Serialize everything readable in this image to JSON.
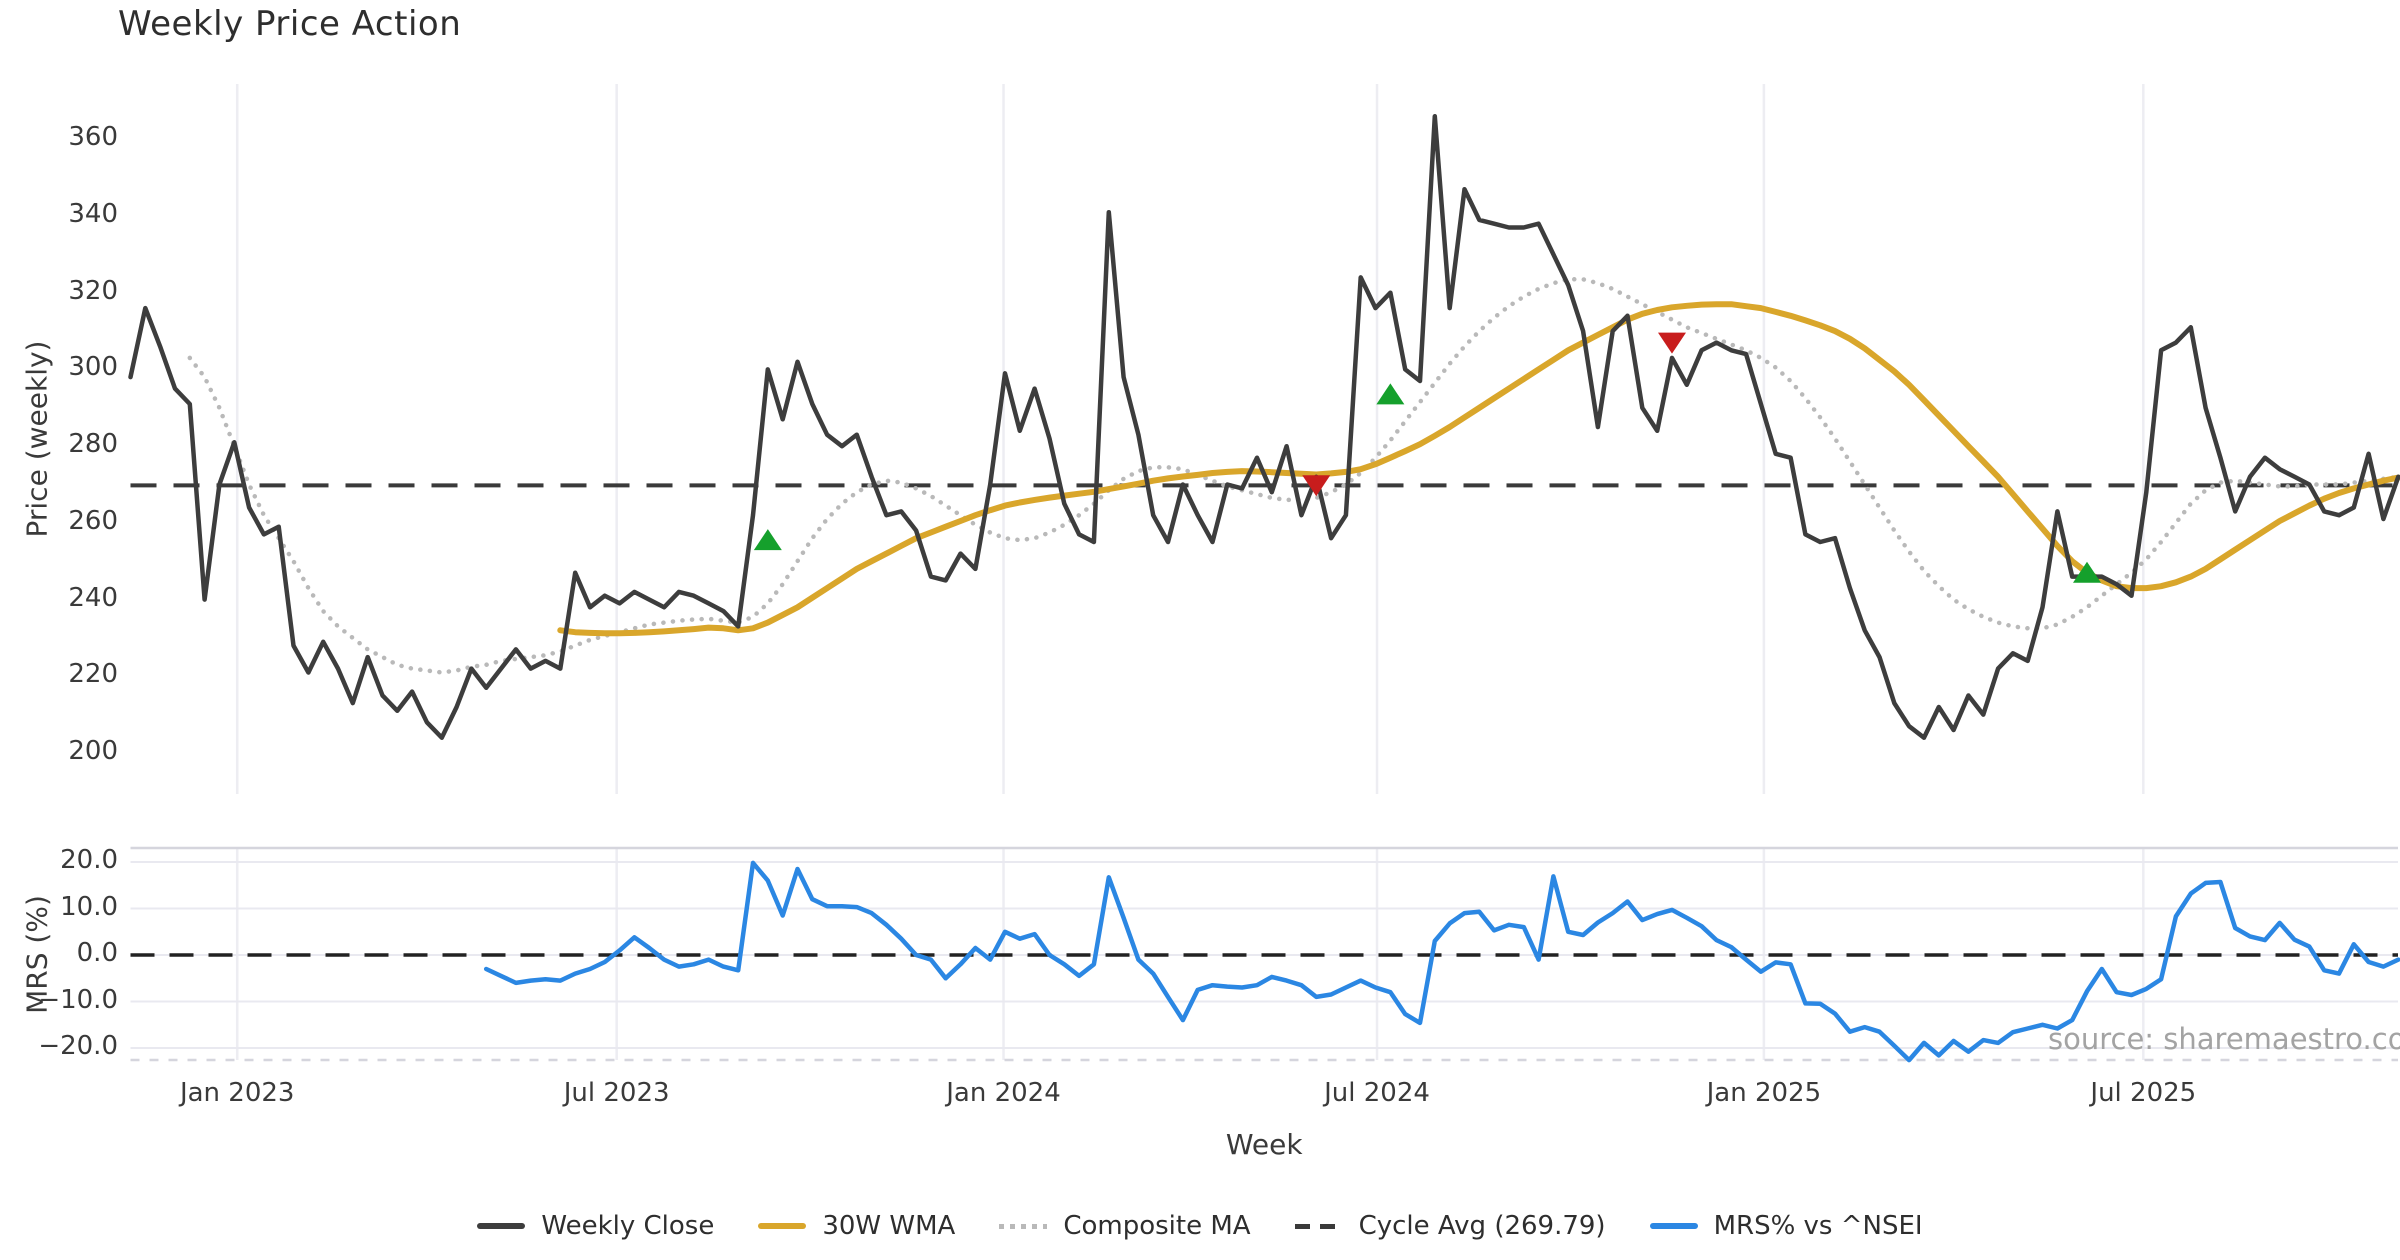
{
  "title": "Weekly Price Action",
  "xlabel": "Week",
  "source_note": "source: sharemaestro.com",
  "price_panel": {
    "ylabel": "Price (weekly)",
    "yticks": [
      "200",
      "220",
      "240",
      "260",
      "280",
      "300",
      "320",
      "340",
      "360"
    ]
  },
  "mrs_panel": {
    "ylabel": "MRS (%)",
    "yticks": [
      "20.0",
      "10.0",
      "0.0",
      "−10.0",
      "−20.0"
    ]
  },
  "x_ticks": [
    {
      "label": "Jan 2023",
      "week": 7.2
    },
    {
      "label": "Jul 2023",
      "week": 32.8
    },
    {
      "label": "Jan 2024",
      "week": 58.9
    },
    {
      "label": "Jul 2024",
      "week": 84.1
    },
    {
      "label": "Jan 2025",
      "week": 110.2
    },
    {
      "label": "Jul 2025",
      "week": 135.8
    }
  ],
  "legend": [
    {
      "label": "Weekly Close",
      "swatch": "solid",
      "color": "#3d3d3d"
    },
    {
      "label": "30W WMA",
      "swatch": "solid",
      "color": "#d9a62b"
    },
    {
      "label": "Composite MA",
      "swatch": "dotted",
      "color": "#b9b9b9"
    },
    {
      "label": "Cycle Avg (269.79)",
      "swatch": "dashed",
      "color": "#3a3a3a"
    },
    {
      "label": "MRS% vs ^NSEI",
      "swatch": "solid",
      "color": "#2b87e3"
    }
  ],
  "colors": {
    "weekly_close": "#3d3d3d",
    "wma": "#d9a62b",
    "composite": "#b9b9b9",
    "cycle_avg_line": "#3a3a3a",
    "mrs": "#2b87e3",
    "buy_marker": "#15a02c",
    "sell_marker": "#c81d1d",
    "gridline": "#ededf2",
    "panel_spine": "#d5d5dd",
    "zero_dash": "#222222"
  },
  "chart_data": {
    "type": "line",
    "x_unit": "week_index",
    "weeks_total": 154,
    "price_ylim": [
      189.6,
      373.5
    ],
    "mrs_ylim": [
      -22.6,
      23.0
    ],
    "cycle_avg": 269.79,
    "mrs_zero": 0.0,
    "grid": "vertical-on-price-panel, horizontal-on-mrs-panel",
    "legend_position": "bottom-center",
    "series": [
      {
        "name": "Weekly Close",
        "panel": "price",
        "start_week": 0,
        "values": [
          298,
          316,
          306,
          295,
          291,
          240,
          270,
          281,
          264,
          257,
          259,
          228,
          221,
          229,
          222,
          213,
          225,
          215,
          211,
          216,
          208,
          204,
          212,
          222,
          217,
          222,
          227,
          222,
          224,
          222,
          247,
          238,
          241,
          239,
          242,
          240,
          238,
          242,
          241,
          239,
          237,
          233,
          262,
          300,
          287,
          302,
          291,
          283,
          280,
          283,
          272,
          262,
          263,
          258,
          246,
          245,
          252,
          248,
          270,
          299,
          284,
          295,
          282,
          265,
          257,
          255,
          341,
          298,
          283,
          262,
          255,
          270,
          262,
          255,
          270,
          269,
          277,
          268,
          280,
          262,
          272,
          256,
          262,
          324,
          316,
          320,
          300,
          297,
          366,
          316,
          347,
          339,
          338,
          337,
          337,
          338,
          330,
          322,
          310,
          285,
          310,
          314,
          290,
          284,
          303,
          296,
          305,
          307,
          305,
          304,
          291,
          278,
          277,
          257,
          255,
          256,
          243,
          232,
          225,
          213,
          207,
          204,
          212,
          206,
          215,
          210,
          222,
          226,
          224,
          238,
          263,
          246,
          246,
          246,
          244,
          241,
          268,
          305,
          307,
          311,
          290,
          277,
          263,
          272,
          277,
          274,
          272,
          270,
          263,
          262,
          264,
          278,
          261,
          272
        ]
      },
      {
        "name": "30W WMA",
        "panel": "price",
        "start_week": 29,
        "values": [
          232,
          231.5,
          231.3,
          231.2,
          231.2,
          231.3,
          231.5,
          231.7,
          232,
          232.3,
          232.7,
          232.5,
          232,
          232.5,
          234,
          236,
          238,
          240.5,
          243,
          245.5,
          248,
          250,
          252,
          254,
          256,
          257.5,
          259,
          260.5,
          262,
          263.3,
          264.5,
          265.3,
          266,
          266.6,
          267.1,
          267.6,
          268.1,
          268.8,
          269.5,
          270.2,
          271,
          271.6,
          272.1,
          272.5,
          273,
          273.3,
          273.5,
          273.4,
          273.2,
          273,
          272.8,
          272.6,
          272.9,
          273.3,
          274,
          275.3,
          277,
          278.7,
          280.5,
          282.7,
          285,
          287.5,
          290,
          292.5,
          295,
          297.5,
          300,
          302.5,
          305,
          307,
          309,
          311,
          313,
          314.5,
          315.5,
          316.2,
          316.6,
          316.9,
          317,
          317,
          316.5,
          316,
          315,
          314,
          312.8,
          311.5,
          310,
          308,
          305.5,
          302.5,
          299.5,
          296,
          292,
          288,
          284,
          280,
          276,
          272,
          267.5,
          263,
          258.5,
          254,
          250,
          247,
          245,
          243.5,
          243,
          243,
          243.5,
          244.5,
          246,
          248,
          250.5,
          253,
          255.5,
          258,
          260.5,
          262.5,
          264.5,
          266.3,
          267.8,
          269,
          270,
          271,
          271.8
        ]
      },
      {
        "name": "Composite MA",
        "panel": "price",
        "start_week": 4,
        "values": [
          303,
          298,
          290,
          280,
          270,
          262,
          256,
          250,
          243,
          237,
          233,
          230,
          227,
          225,
          223,
          222,
          221.5,
          221,
          221.5,
          222.5,
          223,
          224,
          224.5,
          225,
          225.5,
          226.5,
          228,
          229.5,
          230.5,
          231.5,
          232.5,
          233.5,
          234,
          234.5,
          234.8,
          235,
          234.5,
          234,
          235.5,
          239,
          244,
          250,
          256,
          261,
          265,
          268,
          270,
          271,
          270.5,
          269,
          267,
          264.5,
          262,
          259.5,
          257.5,
          256,
          255.5,
          256,
          257.5,
          259.5,
          262,
          265,
          268.5,
          271.5,
          273.5,
          274.5,
          274.5,
          274,
          272.5,
          271,
          269.5,
          268.5,
          267.5,
          266.5,
          266,
          266,
          266.5,
          268,
          270,
          273,
          277,
          281.5,
          286.5,
          291.5,
          296.5,
          301.5,
          306,
          310,
          313.5,
          316.5,
          319,
          321,
          322.5,
          323.5,
          323.5,
          322.5,
          321,
          319,
          317,
          315,
          313,
          311,
          309.5,
          308,
          306.5,
          305,
          303,
          300.5,
          297,
          292.5,
          287.5,
          282,
          276,
          270,
          264,
          258,
          252.5,
          247.5,
          243.5,
          240,
          237.5,
          235.5,
          234,
          233,
          232.5,
          232.5,
          233.5,
          235.5,
          238,
          241,
          244,
          247,
          250.5,
          255,
          260,
          265,
          268.5,
          270.5,
          271,
          270.5,
          270,
          269.5,
          269.5,
          270,
          270,
          270,
          270.5,
          271,
          271.5,
          272
        ]
      },
      {
        "name": "MRS% vs ^NSEI",
        "panel": "mrs",
        "start_week": 24,
        "values": [
          -3,
          -4.5,
          -6,
          -5.5,
          -5.2,
          -5.5,
          -4,
          -3,
          -1.5,
          1,
          3.8,
          1.5,
          -1,
          -2.5,
          -2,
          -1,
          -2.5,
          -3.3,
          19.8,
          16,
          8.5,
          18.5,
          12,
          10.5,
          10.5,
          10.3,
          9,
          6.5,
          3.5,
          0,
          -1,
          -5,
          -2,
          1.5,
          -1,
          5,
          3.5,
          4.5,
          0,
          -2,
          -4.5,
          -2,
          16.7,
          8,
          -1,
          -4,
          -9,
          -14,
          -7.5,
          -6.5,
          -6.8,
          -7,
          -6.5,
          -4.7,
          -5.5,
          -6.5,
          -9,
          -8.5,
          -7,
          -5.5,
          -7,
          -8,
          -12.7,
          -14.6,
          3,
          6.8,
          9,
          9.3,
          5.3,
          6.5,
          6,
          -1,
          16.9,
          5,
          4.3,
          7,
          9,
          11.5,
          7.5,
          8.8,
          9.7,
          8,
          6.2,
          3.2,
          1.7,
          -1,
          -3.6,
          -1.6,
          -2,
          -10.4,
          -10.5,
          -12.6,
          -16.5,
          -15.5,
          -16.5,
          -19.5,
          -22.6,
          -18.9,
          -21.6,
          -18.5,
          -20.8,
          -18.3,
          -18.9,
          -16.6,
          -15.8,
          -15,
          -15.8,
          -14,
          -7.8,
          -3,
          -8,
          -8.6,
          -7.3,
          -5.2,
          8.3,
          13.2,
          15.5,
          15.7,
          5.8,
          4,
          3.2,
          6.9,
          3.3,
          1.8,
          -3.3,
          -4,
          2.3,
          -1.5,
          -2.5,
          -1
        ]
      }
    ],
    "signals": {
      "buy": [
        {
          "week": 43,
          "price": 255.5
        },
        {
          "week": 85,
          "price": 293.5
        },
        {
          "week": 132,
          "price": 247
        }
      ],
      "sell": [
        {
          "week": 80,
          "price": 269.8
        },
        {
          "week": 104,
          "price": 307
        }
      ]
    }
  }
}
